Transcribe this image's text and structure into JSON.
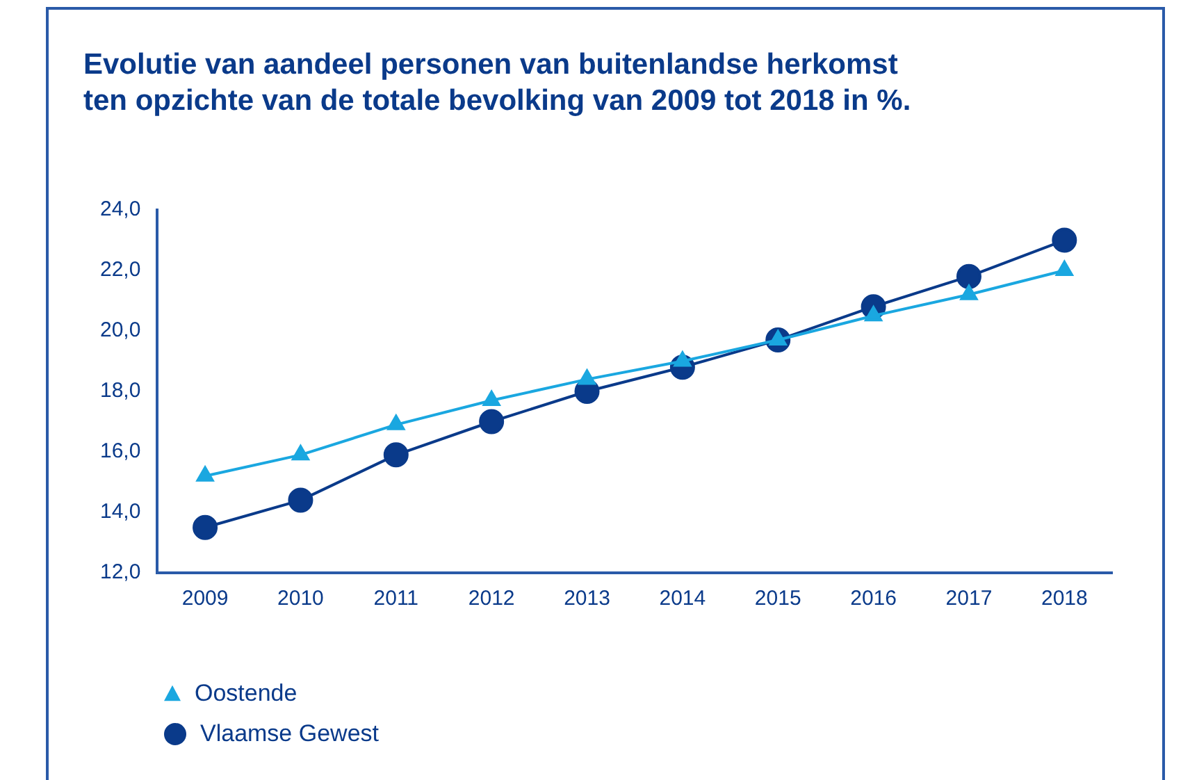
{
  "chart_data": {
    "type": "line",
    "title": "Evolutie van aandeel personen van buitenlandse herkomst\nten opzichte van de totale bevolking van 2009 tot 2018 in %.",
    "categories": [
      "2009",
      "2010",
      "2011",
      "2012",
      "2013",
      "2014",
      "2015",
      "2016",
      "2017",
      "2018"
    ],
    "series": [
      {
        "name": "Oostende",
        "color": "#1aa7e0",
        "marker": "triangle",
        "values": [
          15.2,
          15.9,
          16.9,
          17.7,
          18.4,
          19.0,
          19.7,
          20.5,
          21.2,
          22.0
        ]
      },
      {
        "name": "Vlaamse Gewest",
        "color": "#0a3a8a",
        "marker": "circle",
        "values": [
          13.5,
          14.4,
          15.9,
          17.0,
          18.0,
          18.8,
          19.7,
          20.8,
          21.8,
          23.0
        ]
      }
    ],
    "ylim": [
      12,
      24
    ],
    "yticks": [
      {
        "value": 12,
        "label": "12,0"
      },
      {
        "value": 14,
        "label": "14,0"
      },
      {
        "value": 16,
        "label": "16,0"
      },
      {
        "value": 18,
        "label": "18,0"
      },
      {
        "value": 20,
        "label": "20,0"
      },
      {
        "value": 22,
        "label": "22,0"
      },
      {
        "value": 24,
        "label": "24,0"
      }
    ],
    "grid": false,
    "legend": "bottom left",
    "line_style": "solid"
  }
}
